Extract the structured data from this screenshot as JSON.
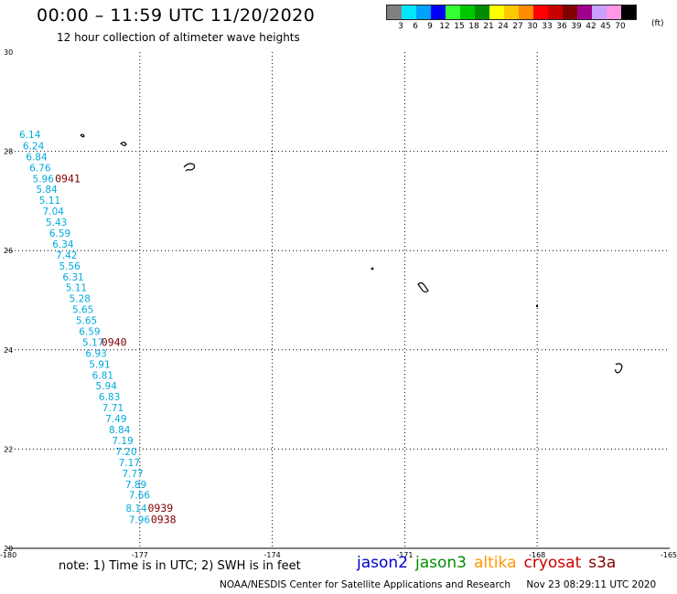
{
  "header": {
    "title": "00:00 – 11:59 UTC 11/20/2020",
    "subtitle": "12 hour collection of altimeter wave heights"
  },
  "legend": {
    "unit": "(ft)",
    "scale": [
      {
        "label": "3",
        "color": "#808080"
      },
      {
        "label": "6",
        "color": "#00e6ff"
      },
      {
        "label": "9",
        "color": "#00a0ff"
      },
      {
        "label": "12",
        "color": "#0000ff"
      },
      {
        "label": "15",
        "color": "#33ff33"
      },
      {
        "label": "18",
        "color": "#00c800"
      },
      {
        "label": "21",
        "color": "#008c00"
      },
      {
        "label": "24",
        "color": "#ffff00"
      },
      {
        "label": "27",
        "color": "#ffc800"
      },
      {
        "label": "30",
        "color": "#ff8c00"
      },
      {
        "label": "33",
        "color": "#ff0000"
      },
      {
        "label": "36",
        "color": "#c80000"
      },
      {
        "label": "39",
        "color": "#800000"
      },
      {
        "label": "42",
        "color": "#a0008c"
      },
      {
        "label": "45",
        "color": "#c8a0ff"
      },
      {
        "label": "70",
        "color": "#ff96e6"
      },
      {
        "label": "",
        "color": "#000000"
      }
    ]
  },
  "map": {
    "lon_labels": [
      "-180",
      "-177",
      "-174",
      "-171",
      "-168",
      "-165"
    ],
    "lat_labels": [
      "30",
      "28",
      "26",
      "24",
      "22",
      "20"
    ],
    "lon_range": [
      -180,
      -165
    ],
    "lat_range": [
      20,
      30
    ],
    "wave_color": "#00aadd",
    "time_color": "#800000",
    "wave_heights": [
      {
        "lat": 28.27,
        "lon": -179.73,
        "value": "6.14"
      },
      {
        "lat": 28.04,
        "lon": -179.65,
        "value": "6.24"
      },
      {
        "lat": 27.82,
        "lon": -179.58,
        "value": "6.84"
      },
      {
        "lat": 27.6,
        "lon": -179.5,
        "value": "6.76"
      },
      {
        "lat": 27.38,
        "lon": -179.43,
        "value": "5.96"
      },
      {
        "lat": 27.16,
        "lon": -179.35,
        "value": "5.84"
      },
      {
        "lat": 26.94,
        "lon": -179.28,
        "value": "5.11"
      },
      {
        "lat": 26.72,
        "lon": -179.2,
        "value": "7.04"
      },
      {
        "lat": 26.5,
        "lon": -179.13,
        "value": "5.43"
      },
      {
        "lat": 26.28,
        "lon": -179.05,
        "value": "6.59"
      },
      {
        "lat": 26.06,
        "lon": -178.98,
        "value": "6.34"
      },
      {
        "lat": 25.84,
        "lon": -178.9,
        "value": "7.42"
      },
      {
        "lat": 25.62,
        "lon": -178.83,
        "value": "5.56"
      },
      {
        "lat": 25.4,
        "lon": -178.75,
        "value": "6.31"
      },
      {
        "lat": 25.18,
        "lon": -178.68,
        "value": "5.11"
      },
      {
        "lat": 24.96,
        "lon": -178.6,
        "value": "5.28"
      },
      {
        "lat": 24.74,
        "lon": -178.53,
        "value": "5.65"
      },
      {
        "lat": 24.52,
        "lon": -178.45,
        "value": "5.65"
      },
      {
        "lat": 24.3,
        "lon": -178.38,
        "value": "6.59"
      },
      {
        "lat": 24.08,
        "lon": -178.3,
        "value": "5.17"
      },
      {
        "lat": 23.86,
        "lon": -178.23,
        "value": "6.93"
      },
      {
        "lat": 23.64,
        "lon": -178.15,
        "value": "5.91"
      },
      {
        "lat": 23.42,
        "lon": -178.08,
        "value": "6.81"
      },
      {
        "lat": 23.2,
        "lon": -178.0,
        "value": "5.94"
      },
      {
        "lat": 22.98,
        "lon": -177.93,
        "value": "6.83"
      },
      {
        "lat": 22.76,
        "lon": -177.85,
        "value": "7.71"
      },
      {
        "lat": 22.54,
        "lon": -177.78,
        "value": "7.49"
      },
      {
        "lat": 22.32,
        "lon": -177.7,
        "value": "8.84"
      },
      {
        "lat": 22.1,
        "lon": -177.63,
        "value": "7.19"
      },
      {
        "lat": 21.88,
        "lon": -177.55,
        "value": "7.20"
      },
      {
        "lat": 21.66,
        "lon": -177.48,
        "value": "7.17"
      },
      {
        "lat": 21.44,
        "lon": -177.4,
        "value": "7.77"
      },
      {
        "lat": 21.22,
        "lon": -177.33,
        "value": "7.89"
      },
      {
        "lat": 21.0,
        "lon": -177.25,
        "value": "7.66"
      },
      {
        "lat": 20.74,
        "lon": -177.32,
        "value": "8.14"
      },
      {
        "lat": 20.51,
        "lon": -177.25,
        "value": "7.96"
      }
    ],
    "pass_times": [
      {
        "lat": 27.38,
        "lon": -178.92,
        "value": "0941"
      },
      {
        "lat": 24.08,
        "lon": -177.87,
        "value": "0940"
      },
      {
        "lat": 20.74,
        "lon": -176.82,
        "value": "0939"
      },
      {
        "lat": 20.51,
        "lon": -176.75,
        "value": "0938"
      }
    ]
  },
  "footer": {
    "note": "note:  1) Time is in UTC;  2) SWH is in feet",
    "satellites": [
      {
        "name": "jason2",
        "color": "#0000cc"
      },
      {
        "name": "jason3",
        "color": "#008c00"
      },
      {
        "name": "altika",
        "color": "#ff9900"
      },
      {
        "name": "cryosat",
        "color": "#cc0000"
      },
      {
        "name": "s3a",
        "color": "#800000"
      }
    ],
    "credit": "NOAA/NESDIS Center for Satellite Applications and Research",
    "timestamp": "Nov 23 08:29:11 UTC 2020"
  }
}
